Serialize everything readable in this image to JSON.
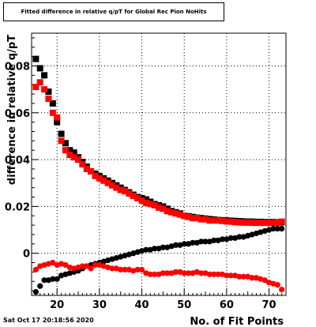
{
  "chart_data": {
    "type": "scatter",
    "title": "Fitted difference in relative q/pT for Global Rec Pion NoHits",
    "xlabel": "No. of Fit Points",
    "ylabel": "difference in relative q/pT",
    "xlim": [
      14,
      74
    ],
    "ylim": [
      -0.018,
      0.094
    ],
    "xticks": [
      20,
      30,
      40,
      50,
      60,
      70
    ],
    "yticks": [
      0,
      0.02,
      0.04,
      0.06,
      0.08
    ],
    "ytick_labels": [
      "0",
      "0.02",
      "0.04",
      "0.06",
      "0.08"
    ],
    "grid": true,
    "timestamp": "Sat Oct 17 20:18:56 2020",
    "series": [
      {
        "color": "#000000",
        "marker": "square",
        "x": [
          15,
          16,
          17,
          18,
          19,
          20,
          21,
          22,
          23,
          24,
          25,
          26,
          27,
          28,
          29,
          30,
          31,
          32,
          33,
          34,
          35,
          36,
          37,
          38,
          39,
          40,
          41,
          42,
          43,
          44,
          45,
          46,
          47,
          48,
          49,
          50,
          51,
          52,
          53,
          54,
          55,
          56,
          57,
          58,
          59,
          60,
          61,
          62,
          63,
          64,
          65,
          66,
          67,
          68,
          69,
          70,
          71,
          72,
          73
        ],
        "y": [
          0.083,
          0.079,
          0.076,
          0.069,
          0.064,
          0.056,
          0.051,
          0.047,
          0.044,
          0.043,
          0.041,
          0.039,
          0.037,
          0.035,
          0.034,
          0.033,
          0.032,
          0.031,
          0.03,
          0.029,
          0.028,
          0.027,
          0.026,
          0.025,
          0.024,
          0.0235,
          0.023,
          0.022,
          0.021,
          0.0205,
          0.02,
          0.019,
          0.018,
          0.0175,
          0.017,
          0.016,
          0.0158,
          0.0155,
          0.0152,
          0.015,
          0.0148,
          0.0146,
          0.0144,
          0.0142,
          0.0141,
          0.014,
          0.0139,
          0.0138,
          0.0137,
          0.0136,
          0.0135,
          0.0135,
          0.0134,
          0.0134,
          0.0133,
          0.0133,
          0.0133,
          0.0132,
          0.0132
        ]
      },
      {
        "color": "#ff0000",
        "marker": "square",
        "x": [
          15,
          16,
          17,
          18,
          19,
          20,
          21,
          22,
          23,
          24,
          25,
          26,
          27,
          28,
          29,
          30,
          31,
          32,
          33,
          34,
          35,
          36,
          37,
          38,
          39,
          40,
          41,
          42,
          43,
          44,
          45,
          46,
          47,
          48,
          49,
          50,
          51,
          52,
          53,
          54,
          55,
          56,
          57,
          58,
          59,
          60,
          61,
          62,
          63,
          64,
          65,
          66,
          67,
          68,
          69,
          70,
          71,
          72,
          73
        ],
        "y": [
          0.071,
          0.073,
          0.07,
          0.066,
          0.06,
          0.058,
          0.048,
          0.044,
          0.042,
          0.041,
          0.04,
          0.038,
          0.036,
          0.035,
          0.033,
          0.032,
          0.031,
          0.03,
          0.029,
          0.028,
          0.027,
          0.0265,
          0.0255,
          0.0245,
          0.0235,
          0.0225,
          0.0215,
          0.021,
          0.0205,
          0.0195,
          0.019,
          0.018,
          0.0175,
          0.017,
          0.0165,
          0.016,
          0.0155,
          0.015,
          0.015,
          0.0145,
          0.0145,
          0.014,
          0.014,
          0.014,
          0.0138,
          0.0136,
          0.0135,
          0.0133,
          0.0132,
          0.0131,
          0.0131,
          0.013,
          0.013,
          0.013,
          0.013,
          0.013,
          0.013,
          0.013,
          0.0135
        ]
      },
      {
        "color": "#000000",
        "marker": "circle",
        "x": [
          15,
          16,
          17,
          18,
          19,
          20,
          21,
          22,
          23,
          24,
          25,
          26,
          27,
          28,
          29,
          30,
          31,
          32,
          33,
          34,
          35,
          36,
          37,
          38,
          39,
          40,
          41,
          42,
          43,
          44,
          45,
          46,
          47,
          48,
          49,
          50,
          51,
          52,
          53,
          54,
          55,
          56,
          57,
          58,
          59,
          60,
          61,
          62,
          63,
          64,
          65,
          66,
          67,
          68,
          69,
          70,
          71,
          72,
          73
        ],
        "y": [
          -0.0165,
          -0.014,
          -0.0115,
          -0.0115,
          -0.011,
          -0.011,
          -0.0095,
          -0.009,
          -0.0085,
          -0.008,
          -0.0075,
          -0.0065,
          -0.0055,
          -0.005,
          -0.0045,
          -0.004,
          -0.0035,
          -0.003,
          -0.0025,
          -0.002,
          -0.0015,
          -0.001,
          -0.0005,
          0.0,
          0.0005,
          0.001,
          0.0015,
          0.0015,
          0.002,
          0.002,
          0.0025,
          0.0025,
          0.003,
          0.0035,
          0.0035,
          0.004,
          0.004,
          0.0045,
          0.0045,
          0.005,
          0.005,
          0.005,
          0.0055,
          0.0055,
          0.006,
          0.006,
          0.0065,
          0.0065,
          0.007,
          0.007,
          0.0075,
          0.008,
          0.0085,
          0.009,
          0.0095,
          0.01,
          0.0105,
          0.0105,
          0.0105
        ]
      },
      {
        "color": "#ff0000",
        "marker": "circle",
        "x": [
          15,
          16,
          17,
          18,
          19,
          20,
          21,
          22,
          23,
          24,
          25,
          26,
          27,
          28,
          29,
          30,
          31,
          32,
          33,
          34,
          35,
          36,
          37,
          38,
          39,
          40,
          41,
          42,
          43,
          44,
          45,
          46,
          47,
          48,
          49,
          50,
          51,
          52,
          53,
          54,
          55,
          56,
          57,
          58,
          59,
          60,
          61,
          62,
          63,
          64,
          65,
          66,
          67,
          68,
          69,
          70,
          71,
          72,
          73
        ],
        "y": [
          -0.007,
          -0.0055,
          -0.005,
          -0.0045,
          -0.004,
          -0.005,
          -0.0045,
          -0.005,
          -0.006,
          -0.0065,
          -0.006,
          -0.0055,
          -0.0055,
          -0.0065,
          -0.005,
          -0.005,
          -0.0055,
          -0.006,
          -0.0065,
          -0.0065,
          -0.007,
          -0.007,
          -0.007,
          -0.0075,
          -0.007,
          -0.007,
          -0.0085,
          -0.009,
          -0.009,
          -0.009,
          -0.0085,
          -0.0085,
          -0.0085,
          -0.008,
          -0.008,
          -0.0085,
          -0.0085,
          -0.0085,
          -0.008,
          -0.0085,
          -0.0085,
          -0.009,
          -0.009,
          -0.009,
          -0.009,
          -0.0095,
          -0.0095,
          -0.0095,
          -0.01,
          -0.01,
          -0.01,
          -0.0105,
          -0.0105,
          -0.011,
          -0.0115,
          -0.0125,
          -0.013,
          -0.0135,
          -0.0155
        ]
      }
    ]
  }
}
